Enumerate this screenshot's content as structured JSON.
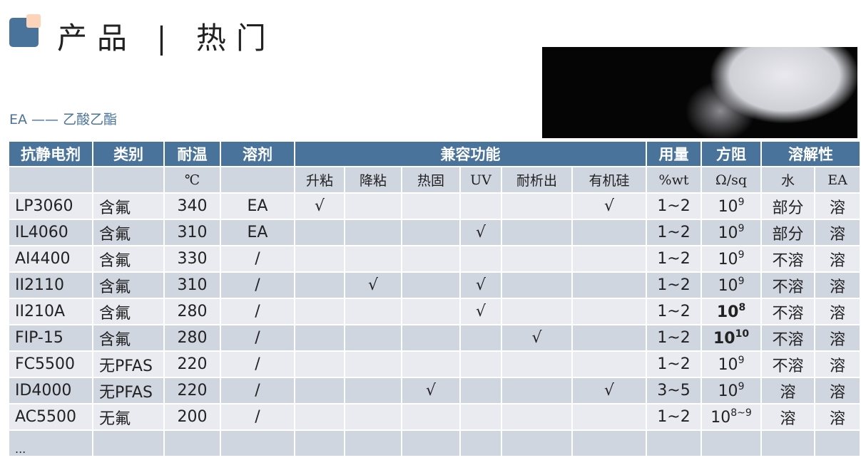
{
  "header": {
    "title": "产品 | 热门",
    "subtitle": "EA —— 乙酸乙酯"
  },
  "colors": {
    "accent": "#4a739c",
    "accent2": "#fdd3b9",
    "row_light": "#e9ebf0",
    "row_dark": "#d0d6df"
  },
  "table": {
    "headers": [
      "抗静电剂",
      "类别",
      "耐温",
      "溶剂",
      "兼容功能",
      "用量",
      "方阻",
      "溶解性"
    ],
    "subheaders": [
      "",
      "",
      "℃",
      "",
      "升粘",
      "降粘",
      "热固",
      "UV",
      "耐析出",
      "有机硅",
      "%wt",
      "Ω/sq",
      "水",
      "EA"
    ],
    "rows": [
      {
        "name": "LP3060",
        "type": "含氟",
        "temp": "340",
        "solvent": "EA",
        "compat": [
          "√",
          "",
          "",
          "",
          "",
          "√"
        ],
        "dose": "1~2",
        "res_base": "10",
        "res_exp": "9",
        "bold": false,
        "water": "部分",
        "ea": "溶"
      },
      {
        "name": "IL4060",
        "type": "含氟",
        "temp": "310",
        "solvent": "EA",
        "compat": [
          "",
          "",
          "",
          "√",
          "",
          ""
        ],
        "dose": "1~2",
        "res_base": "10",
        "res_exp": "9",
        "bold": false,
        "water": "部分",
        "ea": "溶"
      },
      {
        "name": "AI4400",
        "type": "含氟",
        "temp": "330",
        "solvent": "/",
        "compat": [
          "",
          "",
          "",
          "",
          "",
          ""
        ],
        "dose": "1~2",
        "res_base": "10",
        "res_exp": "9",
        "bold": false,
        "water": "不溶",
        "ea": "溶"
      },
      {
        "name": "II2110",
        "type": "含氟",
        "temp": "310",
        "solvent": "/",
        "compat": [
          "",
          "√",
          "",
          "√",
          "",
          ""
        ],
        "dose": "1~2",
        "res_base": "10",
        "res_exp": "9",
        "bold": false,
        "water": "不溶",
        "ea": "溶"
      },
      {
        "name": "II210A",
        "type": "含氟",
        "temp": "280",
        "solvent": "/",
        "compat": [
          "",
          "",
          "",
          "√",
          "",
          ""
        ],
        "dose": "1~2",
        "res_base": "10",
        "res_exp": "8",
        "bold": true,
        "water": "不溶",
        "ea": "溶"
      },
      {
        "name": "FIP-15",
        "type": "含氟",
        "temp": "280",
        "solvent": "/",
        "compat": [
          "",
          "",
          "",
          "",
          "√",
          ""
        ],
        "dose": "1~2",
        "res_base": "10",
        "res_exp": "10",
        "bold": true,
        "water": "不溶",
        "ea": "溶"
      },
      {
        "name": "FC5500",
        "type": "无PFAS",
        "temp": "220",
        "solvent": "/",
        "compat": [
          "",
          "",
          "",
          "",
          "",
          ""
        ],
        "dose": "1~2",
        "res_base": "10",
        "res_exp": "9",
        "bold": false,
        "water": "不溶",
        "ea": "溶"
      },
      {
        "name": "ID4000",
        "type": "无PFAS",
        "temp": "220",
        "solvent": "/",
        "compat": [
          "",
          "",
          "√",
          "",
          "",
          "√"
        ],
        "dose": "3~5",
        "res_base": "10",
        "res_exp": "9",
        "bold": false,
        "water": "溶",
        "ea": "溶"
      },
      {
        "name": "AC5500",
        "type": "无氟",
        "temp": "200",
        "solvent": "/",
        "compat": [
          "",
          "",
          "",
          "",
          "",
          ""
        ],
        "dose": "1~2",
        "res_base": "10",
        "res_exp": "8~9",
        "bold": false,
        "water": "溶",
        "ea": "溶"
      }
    ],
    "ellipsis": "..."
  }
}
